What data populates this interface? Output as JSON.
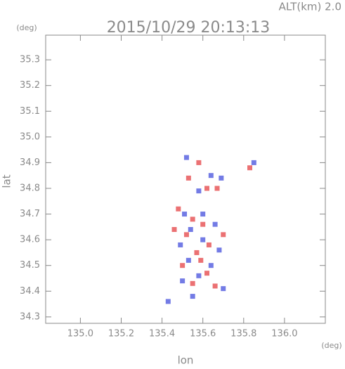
{
  "chart_data": {
    "type": "scatter",
    "title": "2015/10/29 20:13:13",
    "annotation": "ALT(km)  2.0",
    "y_unit": "(deg)",
    "x_unit": "(deg)",
    "xlabel": "lon",
    "ylabel": "lat",
    "xlim": [
      134.83,
      136.2
    ],
    "ylim": [
      34.275,
      35.396
    ],
    "xticks": [
      {
        "value": 135.0,
        "label": "135.0"
      },
      135.2,
      135.4,
      135.6,
      135.8,
      {
        "value": 136.0,
        "label": "136.0"
      }
    ],
    "yticks": [
      35.3,
      35.2,
      35.1,
      {
        "value": 35.0,
        "label": "35.0"
      },
      34.9,
      34.8,
      34.7,
      34.6,
      34.5,
      34.4,
      34.3
    ],
    "series": [
      {
        "color": "#e8585a",
        "x": [
          135.58,
          135.53,
          135.62,
          135.48,
          135.55,
          135.6,
          135.52,
          135.63,
          135.57,
          135.5,
          135.62,
          135.55,
          135.66,
          135.59,
          135.46,
          135.7,
          135.83,
          135.67
        ],
        "values": [
          34.9,
          34.84,
          34.8,
          34.72,
          34.68,
          34.66,
          34.62,
          34.58,
          34.55,
          34.5,
          34.47,
          34.43,
          34.42,
          34.52,
          34.64,
          34.62,
          34.88,
          34.8
        ]
      },
      {
        "color": "#5a64e0",
        "x": [
          135.52,
          135.64,
          135.69,
          135.58,
          135.51,
          135.6,
          135.54,
          135.66,
          135.49,
          135.6,
          135.68,
          135.53,
          135.64,
          135.58,
          135.5,
          135.7,
          135.43,
          135.55,
          135.85
        ],
        "values": [
          34.92,
          34.85,
          34.84,
          34.79,
          34.7,
          34.7,
          34.64,
          34.66,
          34.58,
          34.6,
          34.56,
          34.52,
          34.5,
          34.46,
          34.44,
          34.41,
          34.36,
          34.38,
          34.9
        ]
      }
    ]
  }
}
